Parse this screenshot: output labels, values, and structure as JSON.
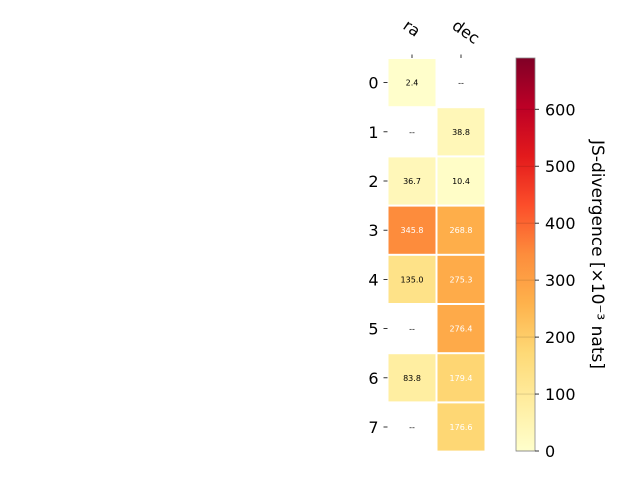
{
  "chart_data": {
    "type": "heatmap",
    "columns": [
      "ra",
      "dec"
    ],
    "rows": [
      "0",
      "1",
      "2",
      "3",
      "4",
      "5",
      "6",
      "7"
    ],
    "values": [
      [
        2.4,
        null
      ],
      [
        null,
        38.8
      ],
      [
        36.7,
        10.4
      ],
      [
        345.8,
        268.8
      ],
      [
        135.0,
        275.3
      ],
      [
        null,
        276.4
      ],
      [
        83.8,
        179.4
      ],
      [
        null,
        176.6
      ]
    ],
    "cell_labels": [
      [
        "2.4",
        "--"
      ],
      [
        "--",
        "38.8"
      ],
      [
        "36.7",
        "10.4"
      ],
      [
        "345.8",
        "268.8"
      ],
      [
        "135.0",
        "275.3"
      ],
      [
        "--",
        "276.4"
      ],
      [
        "83.8",
        "179.4"
      ],
      [
        "--",
        "176.6"
      ]
    ],
    "colorbar": {
      "label": "JS-divergence [×10⁻³ nats]",
      "range": [
        0,
        690
      ],
      "ticks": [
        0,
        100,
        200,
        300,
        400,
        500,
        600
      ],
      "colormap": "YlOrRd"
    },
    "missing_value_label": "--"
  }
}
